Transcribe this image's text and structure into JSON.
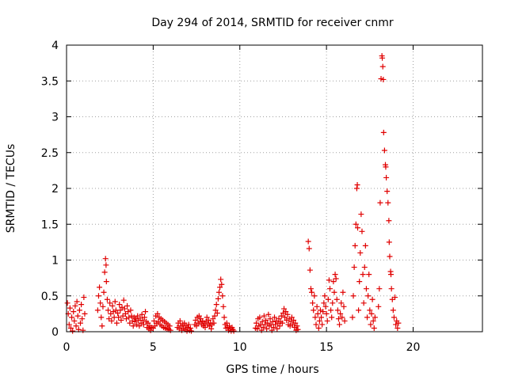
{
  "chart_data": {
    "type": "scatter",
    "title": "Day 294 of 2014, SRMTID for receiver cnmr",
    "xlabel": "GPS time / hours",
    "ylabel": "SRMTID / TECUs",
    "xlim": [
      0,
      24
    ],
    "ylim": [
      0,
      4
    ],
    "xticks": [
      0,
      5,
      10,
      15,
      20
    ],
    "yticks": [
      0,
      0.5,
      1,
      1.5,
      2,
      2.5,
      3,
      3.5,
      4
    ],
    "xtick_labels": [
      "0",
      "5",
      "10",
      "15",
      "20"
    ],
    "ytick_labels": [
      "0",
      "0.5",
      "1",
      "1.5",
      "2",
      "2.5",
      "3",
      "3.5",
      "4"
    ],
    "marker": "+",
    "grid": true,
    "series": [
      {
        "name": "SRMTID",
        "color": "#e00000",
        "points": [
          [
            0.05,
            0.4
          ],
          [
            0.1,
            0.25
          ],
          [
            0.15,
            0.1
          ],
          [
            0.2,
            0.33
          ],
          [
            0.25,
            0.05
          ],
          [
            0.3,
            0.2
          ],
          [
            0.35,
            0.01
          ],
          [
            0.4,
            0.28
          ],
          [
            0.45,
            0.15
          ],
          [
            0.5,
            0.36
          ],
          [
            0.55,
            0.08
          ],
          [
            0.6,
            0.42
          ],
          [
            0.65,
            0.22
          ],
          [
            0.7,
            0.03
          ],
          [
            0.75,
            0.3
          ],
          [
            0.8,
            0.12
          ],
          [
            0.85,
            0.38
          ],
          [
            0.9,
            0.18
          ],
          [
            0.95,
            0.02
          ],
          [
            1.0,
            0.48
          ],
          [
            1.05,
            0.25
          ],
          [
            1.8,
            0.3
          ],
          [
            1.85,
            0.5
          ],
          [
            1.9,
            0.62
          ],
          [
            1.95,
            0.4
          ],
          [
            2.0,
            0.2
          ],
          [
            2.05,
            0.08
          ],
          [
            2.1,
            0.35
          ],
          [
            2.15,
            0.55
          ],
          [
            2.2,
            0.83
          ],
          [
            2.25,
            1.02
          ],
          [
            2.28,
            0.93
          ],
          [
            2.3,
            0.7
          ],
          [
            2.35,
            0.45
          ],
          [
            2.4,
            0.3
          ],
          [
            2.45,
            0.18
          ],
          [
            2.5,
            0.4
          ],
          [
            2.55,
            0.25
          ],
          [
            2.6,
            0.15
          ],
          [
            2.65,
            0.36
          ],
          [
            2.7,
            0.28
          ],
          [
            2.75,
            0.2
          ],
          [
            2.8,
            0.42
          ],
          [
            2.85,
            0.3
          ],
          [
            2.9,
            0.12
          ],
          [
            2.95,
            0.26
          ],
          [
            3.0,
            0.2
          ],
          [
            3.05,
            0.38
          ],
          [
            3.1,
            0.3
          ],
          [
            3.15,
            0.16
          ],
          [
            3.2,
            0.34
          ],
          [
            3.25,
            0.22
          ],
          [
            3.3,
            0.44
          ],
          [
            3.35,
            0.32
          ],
          [
            3.4,
            0.25
          ],
          [
            3.45,
            0.18
          ],
          [
            3.5,
            0.36
          ],
          [
            3.55,
            0.28
          ],
          [
            3.6,
            0.2
          ],
          [
            3.65,
            0.12
          ],
          [
            3.7,
            0.3
          ],
          [
            3.75,
            0.22
          ],
          [
            3.8,
            0.15
          ],
          [
            3.85,
            0.08
          ],
          [
            3.9,
            0.2
          ],
          [
            3.95,
            0.14
          ],
          [
            4.0,
            0.18
          ],
          [
            4.05,
            0.1
          ],
          [
            4.1,
            0.22
          ],
          [
            4.15,
            0.16
          ],
          [
            4.2,
            0.08
          ],
          [
            4.25,
            0.19
          ],
          [
            4.3,
            0.12
          ],
          [
            4.35,
            0.24
          ],
          [
            4.4,
            0.16
          ],
          [
            4.45,
            0.1
          ],
          [
            4.5,
            0.2
          ],
          [
            4.55,
            0.28
          ],
          [
            4.6,
            0.14
          ],
          [
            4.65,
            0.06
          ],
          [
            4.7,
            0.12
          ],
          [
            4.75,
            0.04
          ],
          [
            4.8,
            0.08
          ],
          [
            4.85,
            0.02
          ],
          [
            4.9,
            0.06
          ],
          [
            5.0,
            0.05
          ],
          [
            5.05,
            0.15
          ],
          [
            5.1,
            0.08
          ],
          [
            5.15,
            0.22
          ],
          [
            5.2,
            0.12
          ],
          [
            5.25,
            0.25
          ],
          [
            5.3,
            0.14
          ],
          [
            5.35,
            0.2
          ],
          [
            5.4,
            0.1
          ],
          [
            5.45,
            0.18
          ],
          [
            5.5,
            0.08
          ],
          [
            5.55,
            0.16
          ],
          [
            5.6,
            0.06
          ],
          [
            5.65,
            0.14
          ],
          [
            5.7,
            0.05
          ],
          [
            5.75,
            0.12
          ],
          [
            5.8,
            0.04
          ],
          [
            5.85,
            0.1
          ],
          [
            5.9,
            0.03
          ],
          [
            5.95,
            0.08
          ],
          [
            6.0,
            0.02
          ],
          [
            6.4,
            0.06
          ],
          [
            6.45,
            0.12
          ],
          [
            6.5,
            0.04
          ],
          [
            6.55,
            0.15
          ],
          [
            6.6,
            0.08
          ],
          [
            6.65,
            0.02
          ],
          [
            6.7,
            0.1
          ],
          [
            6.75,
            0.05
          ],
          [
            6.8,
            0.12
          ],
          [
            6.85,
            0.03
          ],
          [
            6.9,
            0.08
          ],
          [
            6.95,
            0.01
          ],
          [
            7.0,
            0.06
          ],
          [
            7.05,
            0.1
          ],
          [
            7.1,
            0.02
          ],
          [
            7.15,
            0.05
          ],
          [
            7.2,
            0.01
          ],
          [
            7.4,
            0.1
          ],
          [
            7.45,
            0.16
          ],
          [
            7.5,
            0.08
          ],
          [
            7.55,
            0.2
          ],
          [
            7.6,
            0.12
          ],
          [
            7.65,
            0.22
          ],
          [
            7.7,
            0.14
          ],
          [
            7.75,
            0.18
          ],
          [
            7.8,
            0.1
          ],
          [
            7.85,
            0.15
          ],
          [
            7.9,
            0.08
          ],
          [
            7.95,
            0.12
          ],
          [
            8.0,
            0.06
          ],
          [
            8.05,
            0.14
          ],
          [
            8.1,
            0.2
          ],
          [
            8.15,
            0.1
          ],
          [
            8.2,
            0.16
          ],
          [
            8.25,
            0.08
          ],
          [
            8.3,
            0.12
          ],
          [
            8.35,
            0.04
          ],
          [
            8.4,
            0.1
          ],
          [
            8.45,
            0.18
          ],
          [
            8.5,
            0.12
          ],
          [
            8.55,
            0.22
          ],
          [
            8.6,
            0.3
          ],
          [
            8.65,
            0.38
          ],
          [
            8.7,
            0.26
          ],
          [
            8.75,
            0.46
          ],
          [
            8.8,
            0.55
          ],
          [
            8.85,
            0.62
          ],
          [
            8.9,
            0.73
          ],
          [
            8.95,
            0.66
          ],
          [
            9.0,
            0.5
          ],
          [
            9.05,
            0.35
          ],
          [
            9.1,
            0.2
          ],
          [
            9.15,
            0.1
          ],
          [
            9.2,
            0.05
          ],
          [
            9.25,
            0.12
          ],
          [
            9.3,
            0.06
          ],
          [
            9.35,
            0.02
          ],
          [
            9.4,
            0.08
          ],
          [
            9.45,
            0.04
          ],
          [
            9.5,
            0.01
          ],
          [
            9.55,
            0.06
          ],
          [
            9.6,
            0.03
          ],
          [
            9.65,
            0.01
          ],
          [
            10.9,
            0.05
          ],
          [
            10.95,
            0.12
          ],
          [
            11.0,
            0.04
          ],
          [
            11.05,
            0.18
          ],
          [
            11.1,
            0.08
          ],
          [
            11.15,
            0.2
          ],
          [
            11.2,
            0.1
          ],
          [
            11.25,
            0.02
          ],
          [
            11.3,
            0.14
          ],
          [
            11.35,
            0.06
          ],
          [
            11.4,
            0.22
          ],
          [
            11.45,
            0.1
          ],
          [
            11.5,
            0.16
          ],
          [
            11.55,
            0.04
          ],
          [
            11.6,
            0.12
          ],
          [
            11.65,
            0.24
          ],
          [
            11.7,
            0.08
          ],
          [
            11.75,
            0.18
          ],
          [
            11.8,
            0.1
          ],
          [
            11.85,
            0.02
          ],
          [
            11.9,
            0.14
          ],
          [
            11.95,
            0.06
          ],
          [
            12.0,
            0.2
          ],
          [
            12.05,
            0.1
          ],
          [
            12.1,
            0.15
          ],
          [
            12.15,
            0.04
          ],
          [
            12.2,
            0.12
          ],
          [
            12.25,
            0.18
          ],
          [
            12.3,
            0.08
          ],
          [
            12.35,
            0.14
          ],
          [
            12.4,
            0.22
          ],
          [
            12.45,
            0.12
          ],
          [
            12.5,
            0.26
          ],
          [
            12.55,
            0.32
          ],
          [
            12.6,
            0.2
          ],
          [
            12.65,
            0.28
          ],
          [
            12.7,
            0.16
          ],
          [
            12.75,
            0.24
          ],
          [
            12.8,
            0.1
          ],
          [
            12.85,
            0.18
          ],
          [
            12.9,
            0.08
          ],
          [
            12.95,
            0.14
          ],
          [
            13.0,
            0.2
          ],
          [
            13.05,
            0.1
          ],
          [
            13.1,
            0.16
          ],
          [
            13.15,
            0.06
          ],
          [
            13.2,
            0.12
          ],
          [
            13.25,
            0.02
          ],
          [
            13.3,
            0.08
          ],
          [
            13.35,
            0.03
          ],
          [
            13.95,
            1.26
          ],
          [
            14.0,
            1.16
          ],
          [
            14.05,
            0.86
          ],
          [
            14.1,
            0.6
          ],
          [
            14.15,
            0.55
          ],
          [
            14.2,
            0.4
          ],
          [
            14.25,
            0.3
          ],
          [
            14.3,
            0.5
          ],
          [
            14.35,
            0.2
          ],
          [
            14.4,
            0.1
          ],
          [
            14.45,
            0.35
          ],
          [
            14.5,
            0.25
          ],
          [
            14.55,
            0.05
          ],
          [
            14.6,
            0.15
          ],
          [
            14.65,
            0.3
          ],
          [
            14.7,
            0.2
          ],
          [
            14.75,
            0.1
          ],
          [
            14.8,
            0.28
          ],
          [
            14.85,
            0.4
          ],
          [
            14.9,
            0.5
          ],
          [
            14.95,
            0.35
          ],
          [
            15.0,
            0.25
          ],
          [
            15.05,
            0.15
          ],
          [
            15.1,
            0.45
          ],
          [
            15.15,
            0.72
          ],
          [
            15.2,
            0.6
          ],
          [
            15.25,
            0.3
          ],
          [
            15.3,
            0.2
          ],
          [
            15.35,
            0.4
          ],
          [
            15.4,
            0.7
          ],
          [
            15.45,
            0.55
          ],
          [
            15.5,
            0.8
          ],
          [
            15.55,
            0.74
          ],
          [
            15.6,
            0.45
          ],
          [
            15.65,
            0.3
          ],
          [
            15.7,
            0.18
          ],
          [
            15.75,
            0.1
          ],
          [
            15.8,
            0.25
          ],
          [
            15.85,
            0.4
          ],
          [
            15.9,
            0.2
          ],
          [
            15.95,
            0.55
          ],
          [
            16.0,
            0.35
          ],
          [
            16.05,
            0.15
          ],
          [
            16.5,
            0.2
          ],
          [
            16.55,
            0.5
          ],
          [
            16.6,
            0.9
          ],
          [
            16.65,
            1.2
          ],
          [
            16.7,
            1.5
          ],
          [
            16.75,
            2.0
          ],
          [
            16.78,
            2.05
          ],
          [
            16.8,
            1.45
          ],
          [
            16.85,
            0.3
          ],
          [
            16.9,
            0.7
          ],
          [
            16.95,
            1.1
          ],
          [
            17.0,
            1.64
          ],
          [
            17.05,
            1.4
          ],
          [
            17.1,
            0.8
          ],
          [
            17.15,
            0.4
          ],
          [
            17.2,
            0.9
          ],
          [
            17.25,
            1.2
          ],
          [
            17.3,
            0.6
          ],
          [
            17.35,
            0.2
          ],
          [
            17.4,
            0.5
          ],
          [
            17.45,
            0.8
          ],
          [
            17.5,
            0.3
          ],
          [
            17.55,
            0.1
          ],
          [
            17.6,
            0.25
          ],
          [
            17.65,
            0.45
          ],
          [
            17.7,
            0.15
          ],
          [
            17.75,
            0.05
          ],
          [
            17.8,
            0.2
          ],
          [
            18.0,
            0.35
          ],
          [
            18.05,
            0.6
          ],
          [
            18.1,
            1.8
          ],
          [
            18.15,
            3.53
          ],
          [
            18.2,
            3.85
          ],
          [
            18.22,
            3.82
          ],
          [
            18.25,
            3.7
          ],
          [
            18.28,
            3.52
          ],
          [
            18.3,
            2.78
          ],
          [
            18.35,
            2.53
          ],
          [
            18.4,
            2.33
          ],
          [
            18.42,
            2.3
          ],
          [
            18.45,
            2.15
          ],
          [
            18.5,
            1.96
          ],
          [
            18.55,
            1.8
          ],
          [
            18.6,
            1.55
          ],
          [
            18.62,
            1.25
          ],
          [
            18.65,
            1.05
          ],
          [
            18.7,
            0.84
          ],
          [
            18.72,
            0.8
          ],
          [
            18.75,
            0.6
          ],
          [
            18.8,
            0.45
          ],
          [
            18.85,
            0.3
          ],
          [
            18.9,
            0.2
          ],
          [
            18.95,
            0.48
          ],
          [
            19.0,
            0.1
          ],
          [
            19.05,
            0.15
          ],
          [
            19.1,
            0.05
          ],
          [
            19.15,
            0.12
          ]
        ]
      }
    ]
  }
}
